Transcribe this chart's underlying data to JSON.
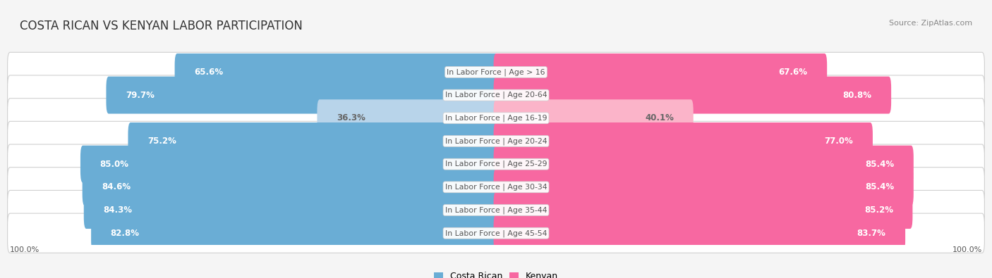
{
  "title": "COSTA RICAN VS KENYAN LABOR PARTICIPATION",
  "source": "Source: ZipAtlas.com",
  "categories": [
    "In Labor Force | Age > 16",
    "In Labor Force | Age 20-64",
    "In Labor Force | Age 16-19",
    "In Labor Force | Age 20-24",
    "In Labor Force | Age 25-29",
    "In Labor Force | Age 30-34",
    "In Labor Force | Age 35-44",
    "In Labor Force | Age 45-54"
  ],
  "costa_rican": [
    65.6,
    79.7,
    36.3,
    75.2,
    85.0,
    84.6,
    84.3,
    82.8
  ],
  "kenyan": [
    67.6,
    80.8,
    40.1,
    77.0,
    85.4,
    85.4,
    85.2,
    83.7
  ],
  "costa_rican_color_high": "#6aadd5",
  "costa_rican_color_low": "#b8d4ea",
  "kenyan_color_high": "#f768a1",
  "kenyan_color_low": "#fbb4c9",
  "label_color_white": "#ffffff",
  "label_color_dark": "#666666",
  "center_label_color": "#555555",
  "row_bg_color": "#e8e8e8",
  "row_border_color": "#d0d0d0",
  "fig_bg_color": "#f5f5f5",
  "max_value": 100.0,
  "legend_costa_rican": "Costa Rican",
  "legend_kenyan": "Kenyan",
  "bottom_left_label": "100.0%",
  "bottom_right_label": "100.0%",
  "threshold_high": 55.0,
  "title_fontsize": 12,
  "source_fontsize": 8,
  "value_fontsize": 8.5,
  "cat_fontsize": 7.8
}
